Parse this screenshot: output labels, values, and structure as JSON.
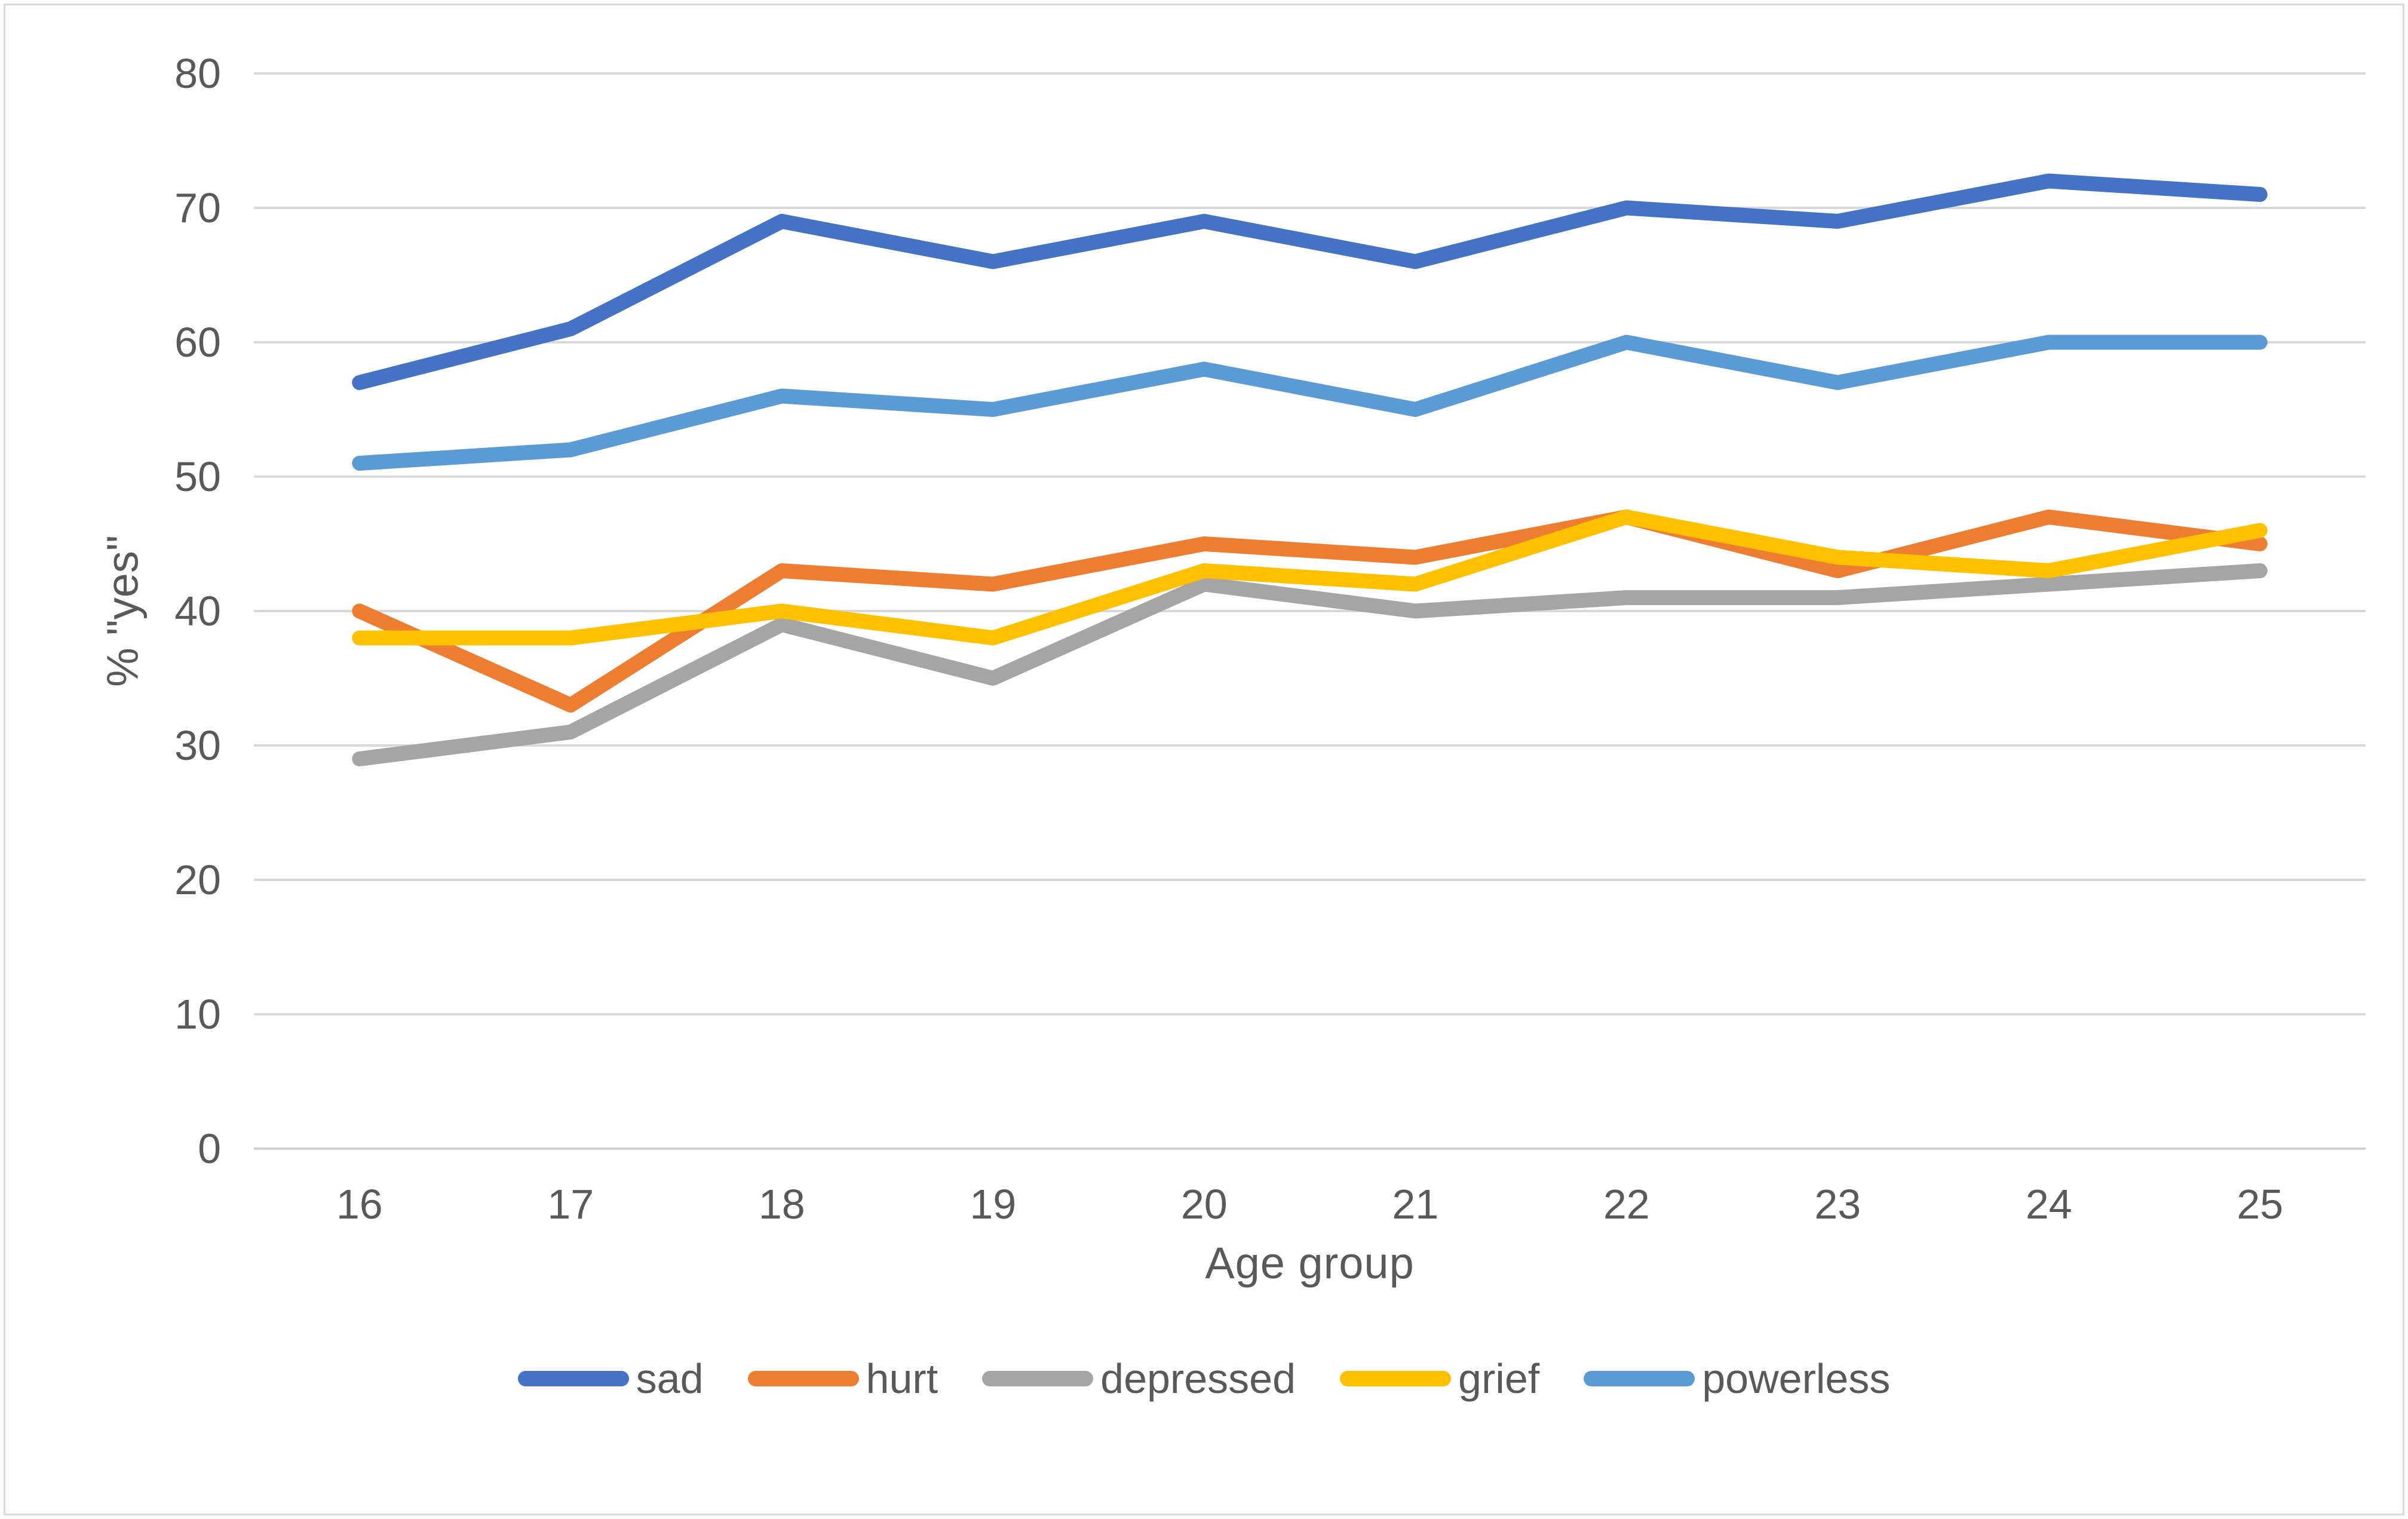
{
  "chart_data": {
    "type": "line",
    "title": "",
    "xlabel": "Age group",
    "ylabel": "% \"yes\"",
    "categories": [
      "16",
      "17",
      "18",
      "19",
      "20",
      "21",
      "22",
      "23",
      "24",
      "25"
    ],
    "series": [
      {
        "name": "sad",
        "color": "#4472C4",
        "values": [
          57,
          61,
          69,
          66,
          69,
          66,
          70,
          69,
          72,
          71
        ]
      },
      {
        "name": "hurt",
        "color": "#ED7D31",
        "values": [
          40,
          33,
          43,
          42,
          45,
          44,
          47,
          43,
          47,
          45
        ]
      },
      {
        "name": "depressed",
        "color": "#A5A5A5",
        "values": [
          29,
          31,
          39,
          35,
          42,
          40,
          41,
          41,
          42,
          43
        ]
      },
      {
        "name": "grief",
        "color": "#FFC000",
        "values": [
          38,
          38,
          40,
          38,
          43,
          42,
          47,
          44,
          43,
          46
        ]
      },
      {
        "name": "powerless",
        "color": "#5B9BD5",
        "values": [
          51,
          52,
          56,
          55,
          58,
          55,
          60,
          57,
          60,
          60
        ]
      }
    ],
    "ylim": [
      0,
      80
    ],
    "ytick_step": 10,
    "grid": true,
    "legend_position": "bottom"
  },
  "colors": {
    "background": "#FFFFFF",
    "frame_border": "#D9D9D9",
    "gridline": "#D9D9D9",
    "axis_line": "#D2D2D2",
    "tick_text": "#595959"
  }
}
